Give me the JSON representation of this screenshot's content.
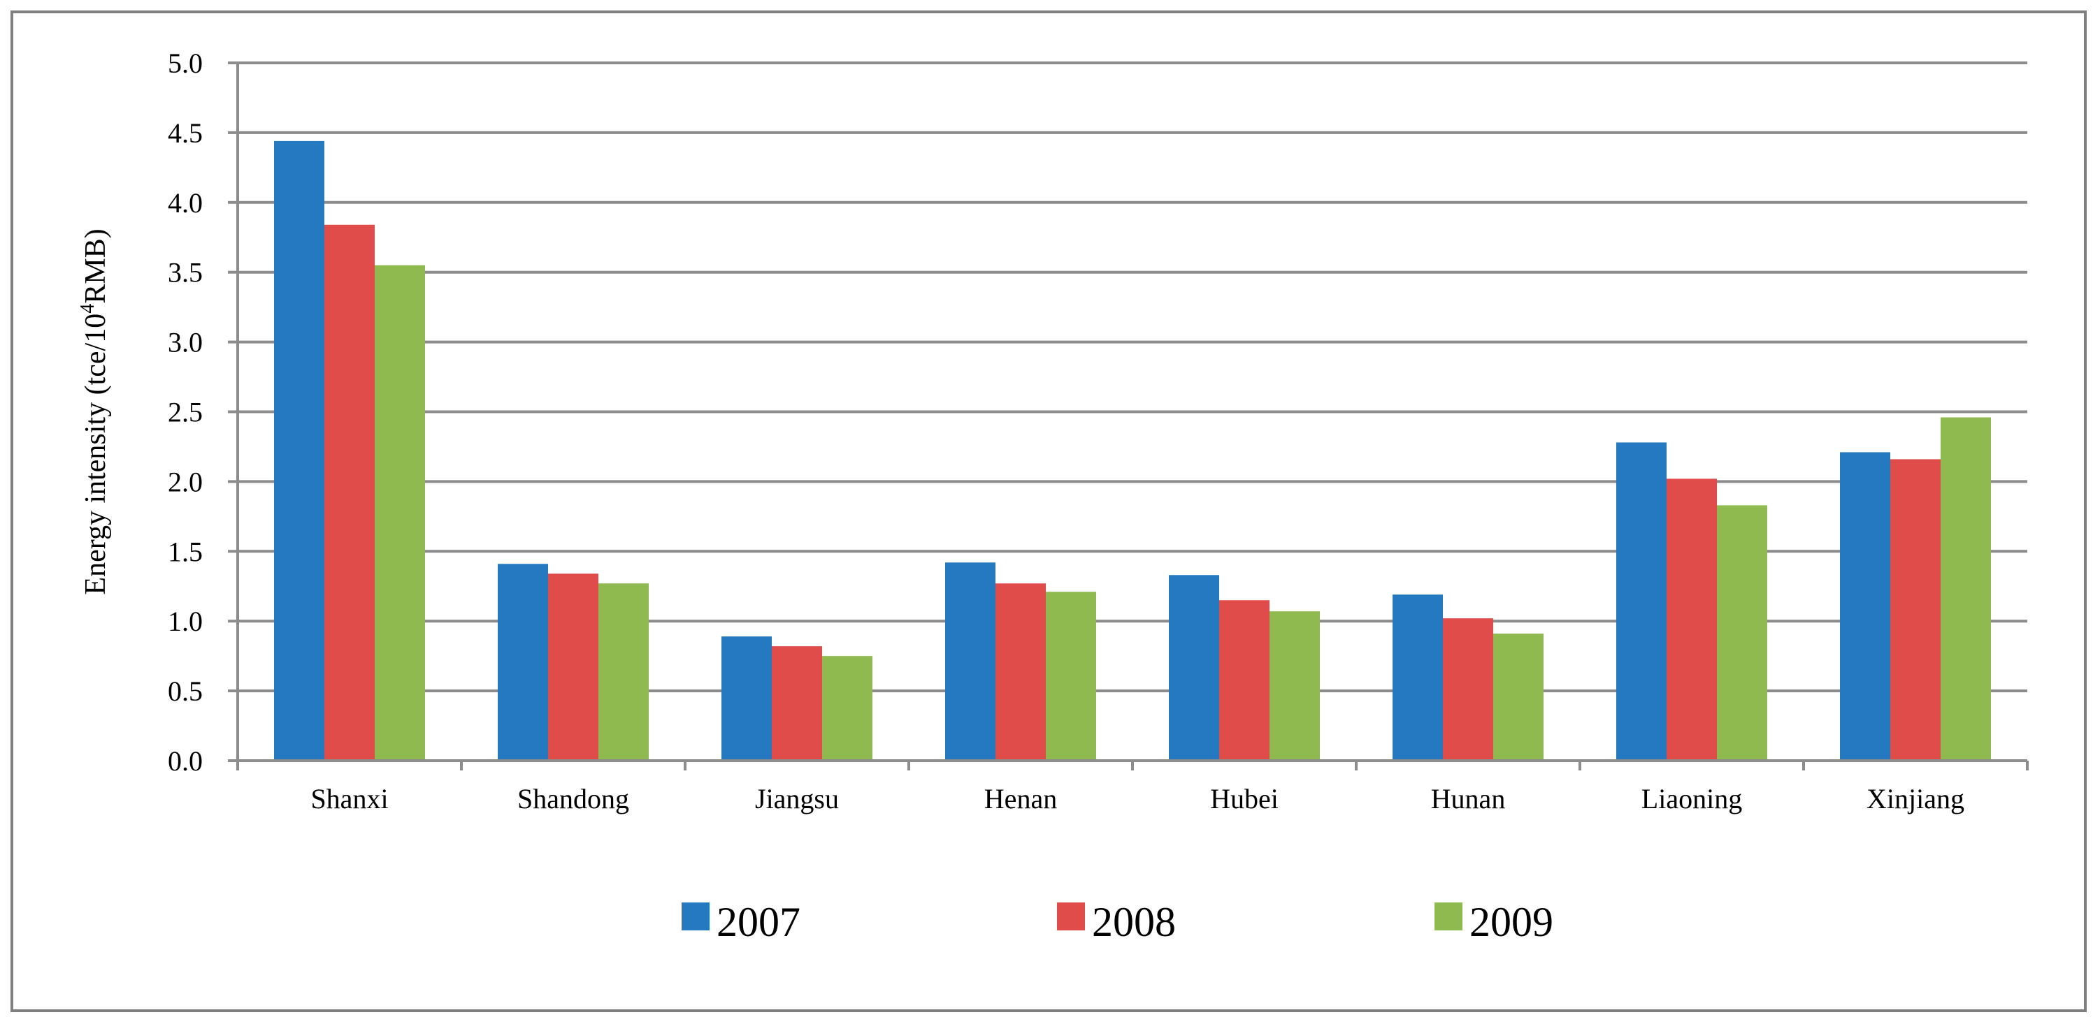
{
  "chart_data": {
    "type": "bar",
    "title": "",
    "xlabel": "",
    "ylabel": "Energy intensity (tce/10",
    "ylabel_superscript": "4",
    "ylabel_suffix": "RMB)",
    "categories": [
      "Shanxi",
      "Shandong",
      "Jiangsu",
      "Henan",
      "Hubei",
      "Hunan",
      "Liaoning",
      "Xinjiang"
    ],
    "series": [
      {
        "name": "2007",
        "color": "#2479c1",
        "values": [
          4.44,
          1.41,
          0.89,
          1.42,
          1.33,
          1.19,
          2.28,
          2.21
        ]
      },
      {
        "name": "2008",
        "color": "#e04c4a",
        "values": [
          3.84,
          1.34,
          0.82,
          1.27,
          1.15,
          1.02,
          2.02,
          2.16
        ]
      },
      {
        "name": "2009",
        "color": "#8eba4f",
        "values": [
          3.55,
          1.27,
          0.75,
          1.21,
          1.07,
          0.91,
          1.83,
          2.46
        ]
      }
    ],
    "ylim": [
      0,
      5
    ],
    "yticks": [
      "0.0",
      "0.5",
      "1.0",
      "1.5",
      "2.0",
      "2.5",
      "3.0",
      "3.5",
      "4.0",
      "4.5",
      "5.0"
    ],
    "grid": "horizontal",
    "legend": "bottom",
    "gridline_color": "#8c8c8c",
    "frame_color": "#7f7f7f"
  }
}
